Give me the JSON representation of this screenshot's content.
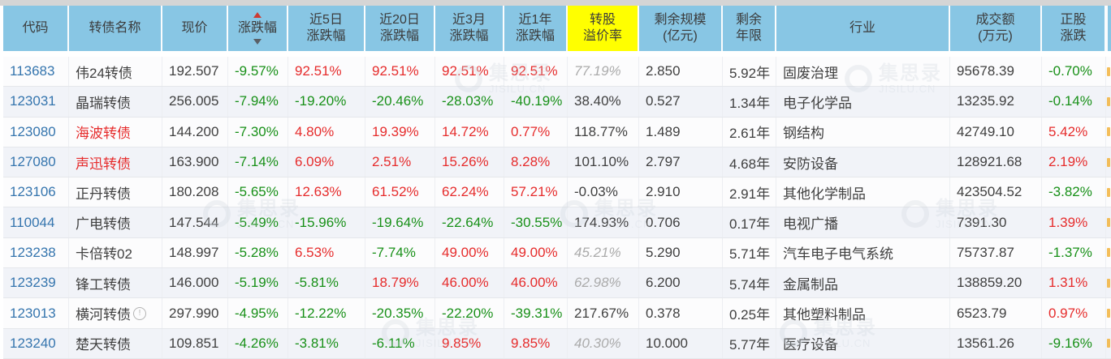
{
  "sort": {
    "column": "涨跌幅",
    "direction": "asc"
  },
  "watermark": {
    "cn": "集思录",
    "en": "JISILU.CN"
  },
  "colors": {
    "header_bg": "#88C6E4",
    "highlight_yellow": "#FFFF00",
    "up_red": "#E62C2C",
    "down_green": "#189018",
    "code_blue": "#3575AE",
    "muted_gray": "#ABABAB",
    "strip_gray": "#D5D5D5"
  },
  "table": {
    "columns": [
      {
        "key": "code",
        "lines": [
          "代码"
        ]
      },
      {
        "key": "name",
        "lines": [
          "转债名称"
        ]
      },
      {
        "key": "price",
        "lines": [
          "现价"
        ]
      },
      {
        "key": "chg",
        "lines": [
          "涨跌幅"
        ],
        "sorted": true
      },
      {
        "key": "d5",
        "lines": [
          "近5日",
          "涨跌幅"
        ]
      },
      {
        "key": "d20",
        "lines": [
          "近20日",
          "涨跌幅"
        ]
      },
      {
        "key": "m3",
        "lines": [
          "近3月",
          "涨跌幅"
        ]
      },
      {
        "key": "y1",
        "lines": [
          "近1年",
          "涨跌幅"
        ]
      },
      {
        "key": "premium",
        "lines": [
          "转股",
          "溢价率"
        ],
        "highlight": true
      },
      {
        "key": "size",
        "lines": [
          "剩余规模",
          "(亿元)"
        ]
      },
      {
        "key": "years",
        "lines": [
          "剩余",
          "年限"
        ]
      },
      {
        "key": "industry",
        "lines": [
          "行业"
        ]
      },
      {
        "key": "turnover",
        "lines": [
          "成交额",
          "(万元)"
        ]
      },
      {
        "key": "stock",
        "lines": [
          "正股",
          "涨跌"
        ]
      }
    ],
    "rows": [
      {
        "code": "113683",
        "name": "伟24转债",
        "name_red": false,
        "info": false,
        "price": "192.507",
        "chg": "-9.57%",
        "d5": "92.51%",
        "d20": "92.51%",
        "m3": "92.51%",
        "y1": "92.51%",
        "premium": "77.19%",
        "premium_gray": true,
        "size": "2.850",
        "years": "5.92年",
        "industry": "固废治理",
        "turnover": "95678.39",
        "stock": "-0.70%"
      },
      {
        "code": "123031",
        "name": "晶瑞转债",
        "name_red": false,
        "info": false,
        "price": "256.005",
        "chg": "-7.94%",
        "d5": "-19.20%",
        "d20": "-20.46%",
        "m3": "-28.03%",
        "y1": "-40.19%",
        "premium": "38.40%",
        "premium_gray": false,
        "size": "0.527",
        "years": "1.34年",
        "industry": "电子化学品",
        "turnover": "13235.92",
        "stock": "-0.14%"
      },
      {
        "code": "123080",
        "name": "海波转债",
        "name_red": true,
        "info": false,
        "price": "144.200",
        "chg": "-7.30%",
        "d5": "4.80%",
        "d20": "19.39%",
        "m3": "14.72%",
        "y1": "0.77%",
        "premium": "118.77%",
        "premium_gray": false,
        "size": "1.489",
        "years": "2.61年",
        "industry": "钢结构",
        "turnover": "42749.10",
        "stock": "5.42%"
      },
      {
        "code": "127080",
        "name": "声迅转债",
        "name_red": true,
        "info": false,
        "price": "163.900",
        "chg": "-7.14%",
        "d5": "6.09%",
        "d20": "2.51%",
        "m3": "15.26%",
        "y1": "8.28%",
        "premium": "101.10%",
        "premium_gray": false,
        "size": "2.797",
        "years": "4.68年",
        "industry": "安防设备",
        "turnover": "128921.68",
        "stock": "2.19%"
      },
      {
        "code": "123106",
        "name": "正丹转债",
        "name_red": false,
        "info": false,
        "price": "180.208",
        "chg": "-5.65%",
        "d5": "12.63%",
        "d20": "61.52%",
        "m3": "62.24%",
        "y1": "57.21%",
        "premium": "-0.03%",
        "premium_gray": false,
        "size": "2.910",
        "years": "2.91年",
        "industry": "其他化学制品",
        "turnover": "423504.52",
        "stock": "-3.82%"
      },
      {
        "code": "110044",
        "name": "广电转债",
        "name_red": false,
        "info": false,
        "price": "147.544",
        "chg": "-5.49%",
        "d5": "-15.96%",
        "d20": "-19.64%",
        "m3": "-22.64%",
        "y1": "-30.55%",
        "premium": "174.93%",
        "premium_gray": false,
        "size": "0.706",
        "years": "0.17年",
        "industry": "电视广播",
        "turnover": "7391.30",
        "stock": "1.39%"
      },
      {
        "code": "123238",
        "name": "卡倍转02",
        "name_red": false,
        "info": false,
        "price": "148.997",
        "chg": "-5.28%",
        "d5": "6.53%",
        "d20": "-7.74%",
        "m3": "49.00%",
        "y1": "49.00%",
        "premium": "45.21%",
        "premium_gray": true,
        "size": "5.290",
        "years": "5.71年",
        "industry": "汽车电子电气系统",
        "turnover": "75737.87",
        "stock": "-1.37%"
      },
      {
        "code": "123239",
        "name": "锋工转债",
        "name_red": false,
        "info": false,
        "price": "146.000",
        "chg": "-5.19%",
        "d5": "-5.81%",
        "d20": "18.79%",
        "m3": "46.00%",
        "y1": "46.00%",
        "premium": "62.98%",
        "premium_gray": true,
        "size": "6.200",
        "years": "5.74年",
        "industry": "金属制品",
        "turnover": "138859.20",
        "stock": "1.31%"
      },
      {
        "code": "123013",
        "name": "横河转债",
        "name_red": false,
        "info": true,
        "price": "297.990",
        "chg": "-4.95%",
        "d5": "-12.22%",
        "d20": "-20.35%",
        "m3": "-22.20%",
        "y1": "-39.31%",
        "premium": "217.67%",
        "premium_gray": false,
        "size": "0.378",
        "years": "0.25年",
        "industry": "其他塑料制品",
        "turnover": "6523.79",
        "stock": "0.97%"
      },
      {
        "code": "123240",
        "name": "楚天转债",
        "name_red": false,
        "info": false,
        "price": "109.851",
        "chg": "-4.26%",
        "d5": "-3.81%",
        "d20": "-6.11%",
        "m3": "9.85%",
        "y1": "9.85%",
        "premium": "40.30%",
        "premium_gray": true,
        "size": "10.000",
        "years": "5.77年",
        "industry": "医疗设备",
        "turnover": "13561.26",
        "stock": "-9.16%"
      }
    ]
  }
}
